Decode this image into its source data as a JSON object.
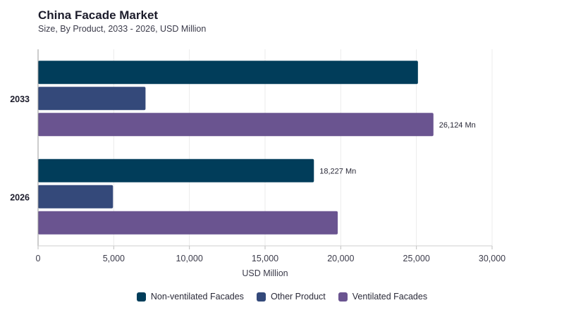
{
  "chart_data": {
    "type": "bar",
    "orientation": "horizontal",
    "title": "China Facade Market",
    "subtitle": "Size, By Product, 2033 - 2026, USD Million",
    "xlabel": "USD Million",
    "ylabel": "",
    "xlim": [
      0,
      30000
    ],
    "xticks": [
      0,
      5000,
      10000,
      15000,
      20000,
      25000,
      30000
    ],
    "xtick_labels": [
      "0",
      "5,000",
      "10,000",
      "15,000",
      "20,000",
      "25,000",
      "30,000"
    ],
    "categories": [
      "2033",
      "2026"
    ],
    "series": [
      {
        "name": "Non-ventilated Facades",
        "color": "#013D5A",
        "values": [
          25100,
          18227
        ],
        "data_labels": [
          "",
          "18,227 Mn"
        ]
      },
      {
        "name": "Other Product",
        "color": "#34497A",
        "values": [
          7100,
          4950
        ],
        "data_labels": [
          "",
          ""
        ]
      },
      {
        "name": "Ventilated Facades",
        "color": "#6A5490",
        "values": [
          26124,
          19800
        ],
        "data_labels": [
          "26,124 Mn",
          ""
        ]
      }
    ],
    "grid": true,
    "legend_position": "bottom-center"
  }
}
